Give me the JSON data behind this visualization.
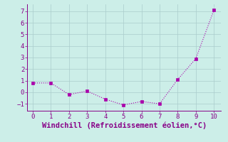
{
  "x": [
    0,
    1,
    2,
    3,
    4,
    5,
    6,
    7,
    8,
    9,
    10
  ],
  "y": [
    0.8,
    0.8,
    -0.2,
    0.1,
    -0.6,
    -1.1,
    -0.8,
    -1.0,
    1.1,
    2.9,
    7.1
  ],
  "xlim": [
    -0.3,
    10.4
  ],
  "ylim": [
    -1.6,
    7.6
  ],
  "xticks": [
    0,
    1,
    2,
    3,
    4,
    5,
    6,
    7,
    8,
    9,
    10
  ],
  "yticks": [
    -1,
    0,
    1,
    2,
    3,
    4,
    5,
    6,
    7
  ],
  "xlabel": "Windchill (Refroidissement éolien,°C)",
  "line_color": "#aa00aa",
  "marker_color": "#aa00aa",
  "bg_color": "#cceee8",
  "grid_color": "#aacccc",
  "axis_color": "#880088",
  "tick_color": "#880088",
  "label_color": "#880088",
  "font_size": 6.5,
  "xlabel_fontsize": 7.5,
  "linewidth": 0.8,
  "markersize": 2.5
}
